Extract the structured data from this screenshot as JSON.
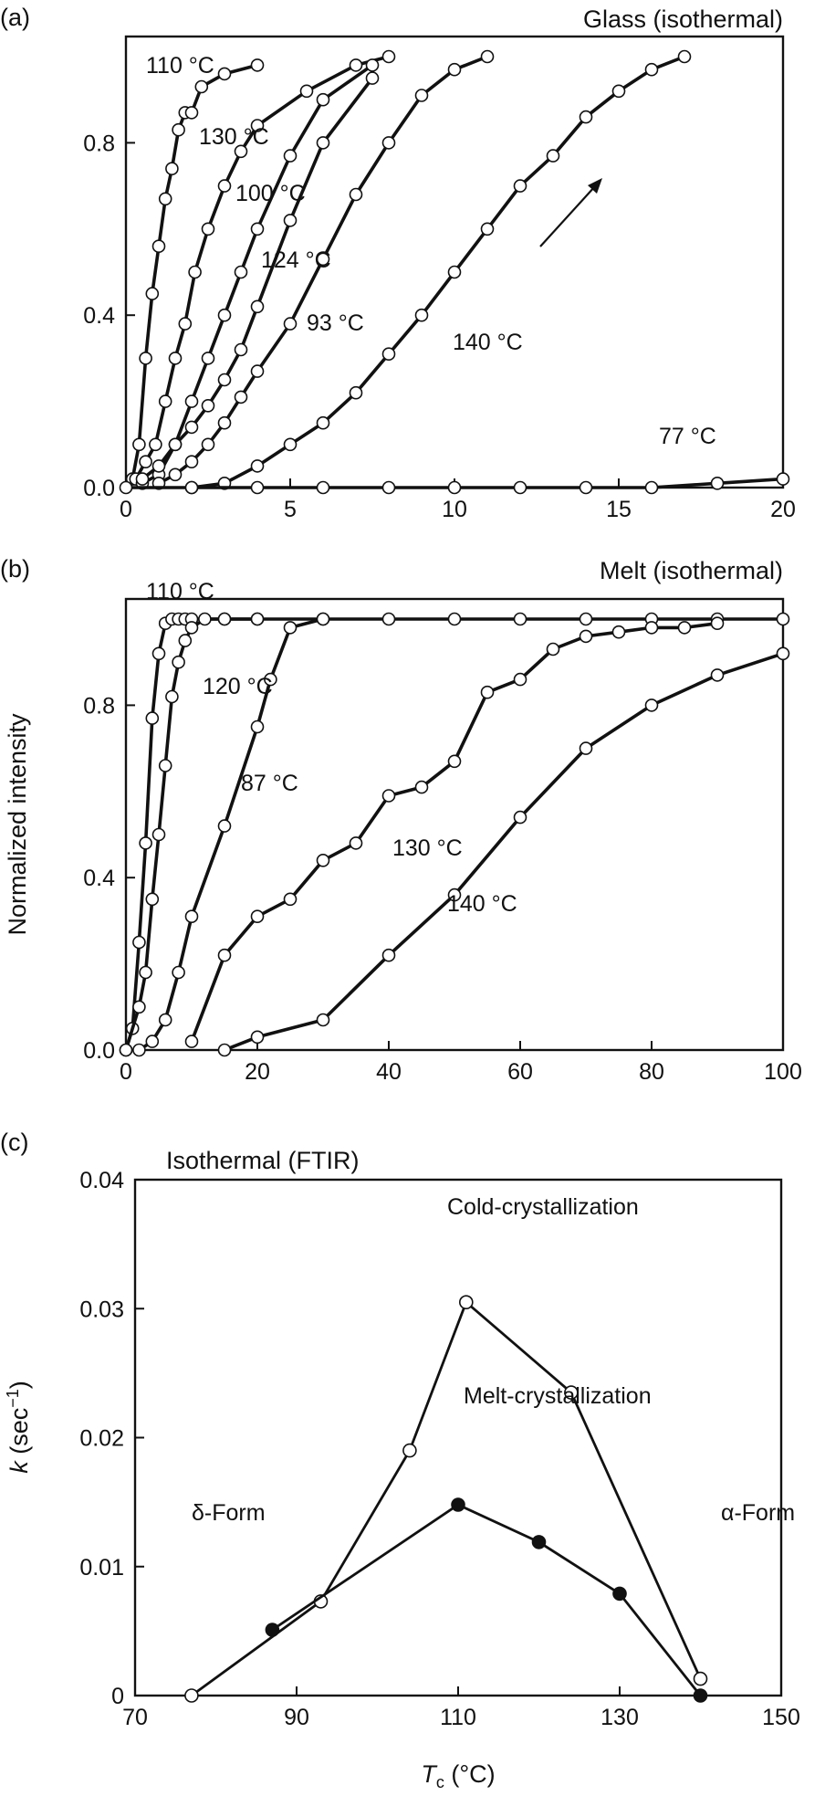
{
  "chart_data": [
    {
      "panel": "(a)",
      "type": "line",
      "title": "Glass (isothermal)",
      "xlabel": "",
      "ylabel": "",
      "xlim": [
        0,
        20
      ],
      "ylim": [
        0,
        1.0
      ],
      "xticks": [
        "0",
        "5",
        "10",
        "15",
        "20"
      ],
      "yticks": [
        "0.0",
        "0.4",
        "0.8"
      ],
      "xtick_values": [
        0,
        5,
        10,
        15,
        20
      ],
      "ytick_values": [
        0,
        0.4,
        0.8
      ],
      "grid": false,
      "series": [
        {
          "name": "110 °C",
          "x": [
            0.2,
            0.4,
            0.6,
            0.8,
            1.0,
            1.2,
            1.4,
            1.6,
            1.8,
            2.0,
            2.3,
            3.0,
            4.0
          ],
          "y": [
            0.02,
            0.1,
            0.3,
            0.45,
            0.56,
            0.67,
            0.74,
            0.83,
            0.87,
            0.87,
            0.93,
            0.96,
            0.98
          ]
        },
        {
          "name": "130 °C",
          "x": [
            0.3,
            0.6,
            0.9,
            1.2,
            1.5,
            1.8,
            2.1,
            2.5,
            3.0,
            3.5,
            4.0,
            5.5,
            7.0,
            8.0
          ],
          "y": [
            0.02,
            0.06,
            0.1,
            0.2,
            0.3,
            0.38,
            0.5,
            0.6,
            0.7,
            0.78,
            0.84,
            0.92,
            0.98,
            1.0
          ]
        },
        {
          "name": "100 °C",
          "x": [
            0.5,
            1.0,
            1.5,
            2.0,
            2.5,
            3.0,
            3.5,
            4.0,
            5.0,
            6.0,
            7.5
          ],
          "y": [
            0.01,
            0.03,
            0.1,
            0.2,
            0.3,
            0.4,
            0.5,
            0.6,
            0.77,
            0.9,
            0.98
          ]
        },
        {
          "name": "124 °C",
          "x": [
            0.5,
            1.0,
            1.5,
            2.0,
            2.5,
            3.0,
            3.5,
            4.0,
            5.0,
            6.0,
            7.5
          ],
          "y": [
            0.02,
            0.05,
            0.1,
            0.14,
            0.19,
            0.25,
            0.32,
            0.42,
            0.62,
            0.8,
            0.95
          ]
        },
        {
          "name": "93 °C",
          "x": [
            1.0,
            1.5,
            2.0,
            2.5,
            3.0,
            3.5,
            4.0,
            5.0,
            6.0,
            7.0,
            8.0,
            9.0,
            10.0,
            11.0
          ],
          "y": [
            0.01,
            0.03,
            0.06,
            0.1,
            0.15,
            0.21,
            0.27,
            0.38,
            0.53,
            0.68,
            0.8,
            0.91,
            0.97,
            1.0
          ]
        },
        {
          "name": "140 °C",
          "x": [
            2.0,
            3.0,
            4.0,
            5.0,
            6.0,
            7.0,
            8.0,
            9.0,
            10.0,
            11.0,
            12.0,
            13.0,
            14.0,
            15.0,
            16.0,
            17.0
          ],
          "y": [
            0.0,
            0.01,
            0.05,
            0.1,
            0.15,
            0.22,
            0.31,
            0.4,
            0.5,
            0.6,
            0.7,
            0.77,
            0.86,
            0.92,
            0.97,
            1.0
          ]
        },
        {
          "name": "77 °C",
          "x": [
            0.0,
            2.0,
            4.0,
            6.0,
            8.0,
            10.0,
            12.0,
            14.0,
            16.0,
            18.0,
            20.0
          ],
          "y": [
            0.0,
            0.0,
            0.0,
            0.0,
            0.0,
            0.0,
            0.0,
            0.0,
            0.0,
            0.01,
            0.02
          ]
        }
      ]
    },
    {
      "panel": "(b)",
      "type": "line",
      "title": "Melt (isothermal)",
      "xlabel": "",
      "ylabel": "Normalized intensity",
      "xlim": [
        0,
        100
      ],
      "ylim": [
        0,
        1.0
      ],
      "xticks": [
        "0",
        "20",
        "40",
        "60",
        "80",
        "100"
      ],
      "yticks": [
        "0.0",
        "0.4",
        "0.8"
      ],
      "xtick_values": [
        0,
        20,
        40,
        60,
        80,
        100
      ],
      "ytick_values": [
        0,
        0.4,
        0.8
      ],
      "grid": false,
      "series": [
        {
          "name": "110 °C",
          "x": [
            0,
            1,
            2,
            3,
            4,
            5,
            6,
            7,
            8,
            9,
            10,
            15,
            20,
            30
          ],
          "y": [
            0,
            0.05,
            0.25,
            0.48,
            0.77,
            0.92,
            0.99,
            1.0,
            1.0,
            1.0,
            1.0,
            1.0,
            1.0,
            1.0
          ]
        },
        {
          "name": "120 °C",
          "x": [
            0,
            2,
            3,
            4,
            5,
            6,
            7,
            8,
            9,
            10,
            12,
            15,
            20
          ],
          "y": [
            0,
            0.1,
            0.18,
            0.35,
            0.5,
            0.66,
            0.82,
            0.9,
            0.95,
            0.98,
            1.0,
            1.0,
            1.0
          ]
        },
        {
          "name": "87 °C",
          "x": [
            2,
            4,
            6,
            8,
            10,
            15,
            20,
            22,
            25,
            30,
            40,
            50,
            60,
            70,
            80,
            90,
            100
          ],
          "y": [
            0,
            0.02,
            0.07,
            0.18,
            0.31,
            0.52,
            0.75,
            0.86,
            0.98,
            1.0,
            1.0,
            1.0,
            1.0,
            1.0,
            1.0,
            1.0,
            1.0
          ]
        },
        {
          "name": "130 °C",
          "x": [
            10,
            15,
            20,
            25,
            30,
            35,
            40,
            45,
            50,
            55,
            60,
            65,
            70,
            75,
            80,
            85,
            90
          ],
          "y": [
            0.02,
            0.22,
            0.31,
            0.35,
            0.44,
            0.48,
            0.59,
            0.61,
            0.67,
            0.83,
            0.86,
            0.93,
            0.96,
            0.97,
            0.98,
            0.98,
            0.99
          ]
        },
        {
          "name": "140 °C",
          "x": [
            15,
            20,
            30,
            40,
            50,
            60,
            70,
            80,
            90,
            100
          ],
          "y": [
            0.0,
            0.03,
            0.07,
            0.22,
            0.36,
            0.54,
            0.7,
            0.8,
            0.87,
            0.92
          ]
        }
      ]
    },
    {
      "panel": "(c)",
      "type": "line",
      "title": "Isothermal (FTIR)",
      "xlabel": "T",
      "xlabel_sub": "c",
      "xlabel_unit": " (°C)",
      "ylabel": "k",
      "ylabel_unit": " (sec",
      "ylabel_sup": "−1",
      "ylabel_close": ")",
      "xlim": [
        70,
        150
      ],
      "ylim": [
        0,
        0.04
      ],
      "xticks": [
        "70",
        "90",
        "110",
        "130",
        "150"
      ],
      "yticks": [
        "0",
        "0.01",
        "0.02",
        "0.03",
        "0.04"
      ],
      "xtick_values": [
        70,
        90,
        110,
        130,
        150
      ],
      "ytick_values": [
        0,
        0.01,
        0.02,
        0.03,
        0.04
      ],
      "grid": false,
      "series": [
        {
          "name": "Cold-crystallization",
          "marker": "open",
          "x": [
            77,
            93,
            104,
            111,
            124,
            140
          ],
          "y": [
            0.0,
            0.0073,
            0.019,
            0.0305,
            0.0235,
            0.0013
          ]
        },
        {
          "name": "Melt-crystallization",
          "marker": "filled",
          "x": [
            87,
            110,
            120,
            130,
            140
          ],
          "y": [
            0.0051,
            0.0148,
            0.0119,
            0.0079,
            0.0
          ]
        }
      ],
      "annotations": [
        "δ-Form",
        "α-Form"
      ]
    }
  ]
}
